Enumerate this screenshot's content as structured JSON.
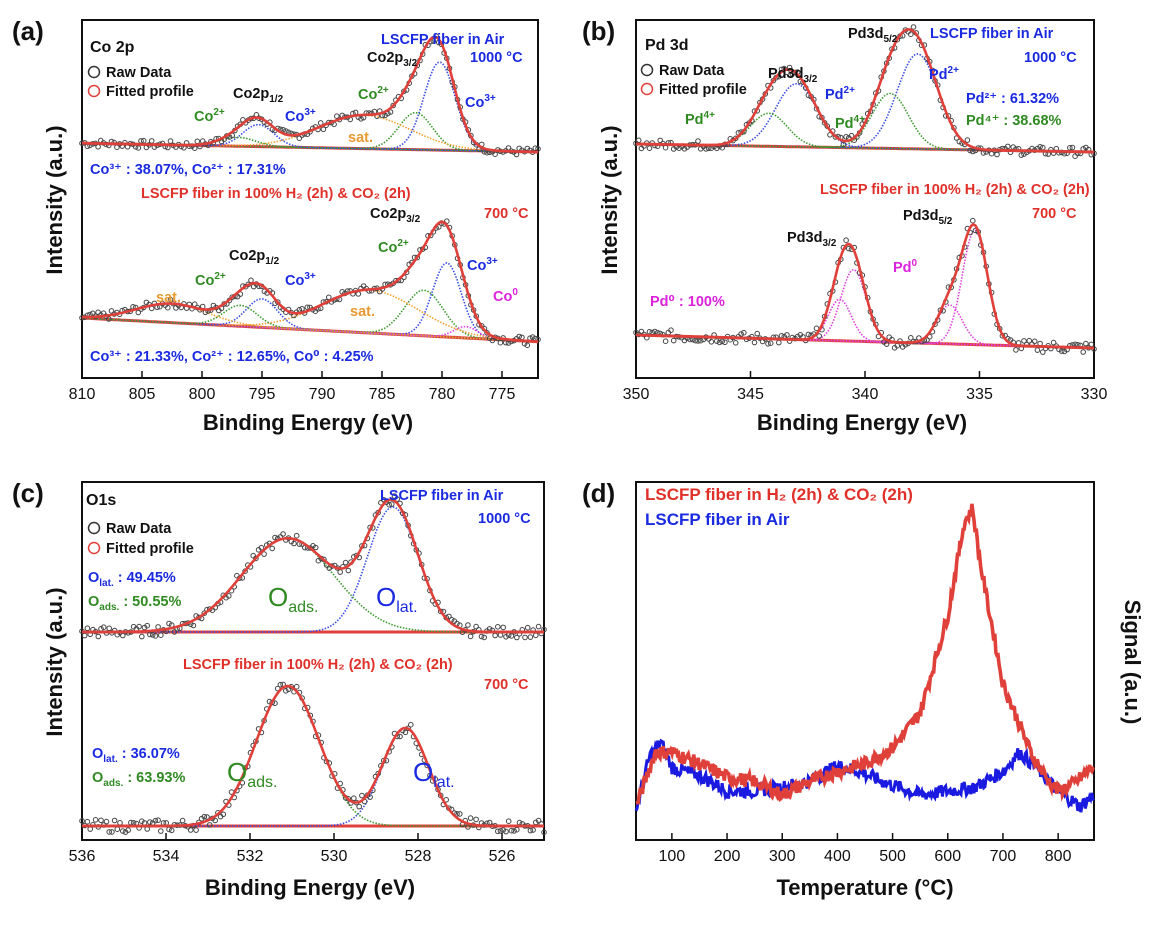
{
  "colors": {
    "raw": "#444444",
    "fit": "#e0403a",
    "co3": "#3a4ee6",
    "co2": "#3c9a2e",
    "sat": "#f0a030",
    "co0": "#e040e0",
    "lat": "#3a4ee6",
    "ads": "#3c9a2e",
    "background": "#e0403a",
    "air": "#1a1ae0",
    "red_text": "#e0302a",
    "blue_text": "#1a2ae0",
    "green_text": "#2f8a22",
    "magenta_text": "#dd22dd",
    "orange_text": "#e89a30"
  },
  "chart_data": [
    {
      "id": "a",
      "type": "line",
      "panel_label": "(a)",
      "element": "Co 2p",
      "xlabel": "Binding Energy (eV)",
      "ylabel": "Intensity (a.u.)",
      "xlim": [
        810,
        772
      ],
      "ticks": [
        810,
        805,
        800,
        795,
        790,
        785,
        780,
        775
      ],
      "legend": [
        "Raw Data",
        "Fitted profile"
      ],
      "legend_position": "top-left",
      "top": {
        "condition": "LSCFP fiber in Air",
        "temperature": "1000 °C",
        "peaks": [
          {
            "name": "Co3+",
            "center": 780.2,
            "height": 1.0,
            "width": 1.3
          },
          {
            "name": "Co2+",
            "center": 782.2,
            "height": 0.42,
            "width": 1.4
          },
          {
            "name": "sat.",
            "center": 786.5,
            "height": 0.38,
            "width": 3.8
          },
          {
            "name": "Co3+",
            "center": 795.3,
            "height": 0.25,
            "width": 1.3
          },
          {
            "name": "Co2+",
            "center": 797.0,
            "height": 0.1,
            "width": 1.5
          }
        ],
        "ratio_text": "Co³⁺ : 38.07%, Co²⁺ : 17.31%"
      },
      "bottom": {
        "condition": "LSCFP fiber in 100% H₂ (2h) & CO₂ (2h)",
        "temperature": "700 °C",
        "peaks": [
          {
            "name": "Co3+",
            "center": 779.6,
            "height": 0.78,
            "width": 1.2
          },
          {
            "name": "Co2+",
            "center": 781.5,
            "height": 0.48,
            "width": 1.6
          },
          {
            "name": "Co0",
            "center": 778.0,
            "height": 0.12,
            "width": 1.0
          },
          {
            "name": "sat.",
            "center": 786.0,
            "height": 0.45,
            "width": 4.0
          },
          {
            "name": "Co3+",
            "center": 795.0,
            "height": 0.3,
            "width": 1.3
          },
          {
            "name": "Co2+",
            "center": 796.8,
            "height": 0.22,
            "width": 1.4
          },
          {
            "name": "sat.",
            "center": 802.5,
            "height": 0.2,
            "width": 3.0
          }
        ],
        "ratio_text": "Co³⁺ : 21.33%, Co²⁺ : 12.65%, Co⁰ : 4.25%"
      }
    },
    {
      "id": "b",
      "type": "line",
      "panel_label": "(b)",
      "element": "Pd 3d",
      "xlabel": "Binding Energy (eV)",
      "ylabel": "Intensity (a.u.)",
      "xlim": [
        350,
        330
      ],
      "ticks": [
        350,
        345,
        340,
        335,
        330
      ],
      "legend": [
        "Raw Data",
        "Fitted profile"
      ],
      "legend_position": "top-left",
      "top": {
        "condition": "LSCFP fiber in Air",
        "temperature": "1000 °C",
        "peaks": [
          {
            "name": "Pd2+",
            "center": 337.7,
            "height": 0.95,
            "width": 0.9
          },
          {
            "name": "Pd4+",
            "center": 338.9,
            "height": 0.55,
            "width": 0.8
          },
          {
            "name": "Pd2+",
            "center": 343.0,
            "height": 0.63,
            "width": 0.9
          },
          {
            "name": "Pd4+",
            "center": 344.2,
            "height": 0.33,
            "width": 0.8
          }
        ],
        "ratio_text": [
          "Pd²⁺ : 61.32%",
          "Pd⁴⁺ : 38.68%"
        ]
      },
      "bottom": {
        "condition": "LSCFP fiber in 100% H₂ (2h) & CO₂ (2h)",
        "temperature": "700 °C",
        "peaks": [
          {
            "name": "Pd0",
            "center": 335.2,
            "height": 0.88,
            "width": 0.55
          },
          {
            "name": "Pd0",
            "center": 336.3,
            "height": 0.3,
            "width": 0.55
          },
          {
            "name": "Pd0",
            "center": 340.5,
            "height": 0.55,
            "width": 0.55
          },
          {
            "name": "Pd0",
            "center": 341.1,
            "height": 0.32,
            "width": 0.5
          }
        ],
        "ratio_text": [
          "Pd⁰ : 100%"
        ]
      }
    },
    {
      "id": "c",
      "type": "line",
      "panel_label": "(c)",
      "element": "O1s",
      "xlabel": "Binding Energy (eV)",
      "ylabel": "Intensity (a.u.)",
      "xlim": [
        536,
        525
      ],
      "ticks": [
        536,
        534,
        532,
        530,
        528,
        526
      ],
      "legend": [
        "Raw Data",
        "Fitted profile"
      ],
      "legend_position": "top-left",
      "top": {
        "condition": "LSCFP fiber in Air",
        "temperature": "1000 °C",
        "peaks": [
          {
            "name": "O lat.",
            "center": 528.6,
            "height": 1.0,
            "width": 0.6
          },
          {
            "name": "O ads.",
            "center": 531.1,
            "height": 0.75,
            "width": 1.1
          }
        ],
        "ratio_text": [
          "O_lat. : 49.45%",
          "O_ads. : 50.55%"
        ]
      },
      "bottom": {
        "condition": "LSCFP fiber in 100% H₂ (2h) & CO₂ (2h)",
        "temperature": "700 °C",
        "peaks": [
          {
            "name": "O lat.",
            "center": 528.3,
            "height": 0.7,
            "width": 0.55
          },
          {
            "name": "O ads.",
            "center": 531.1,
            "height": 1.0,
            "width": 0.75
          }
        ],
        "ratio_text": [
          "O_lat. : 36.07%",
          "O_ads. : 63.93%"
        ]
      }
    },
    {
      "id": "d",
      "type": "line",
      "panel_label": "(d)",
      "xlabel": "Temperature (°C)",
      "ylabel": "Signal (a.u.)",
      "xlim": [
        35,
        865
      ],
      "ticks": [
        100,
        200,
        300,
        400,
        500,
        600,
        700,
        800
      ],
      "legend_position": "top-left",
      "series": [
        {
          "name": "LSCFP fiber in H₂ (2h) & CO₂ (2h)",
          "points": [
            [
              35,
              0.12
            ],
            [
              70,
              0.4
            ],
            [
              100,
              0.4
            ],
            [
              150,
              0.34
            ],
            [
              200,
              0.27
            ],
            [
              250,
              0.25
            ],
            [
              300,
              0.18
            ],
            [
              350,
              0.25
            ],
            [
              400,
              0.3
            ],
            [
              450,
              0.34
            ],
            [
              500,
              0.42
            ],
            [
              550,
              0.6
            ],
            [
              600,
              1.1
            ],
            [
              630,
              1.58
            ],
            [
              645,
              1.65
            ],
            [
              660,
              1.35
            ],
            [
              700,
              0.75
            ],
            [
              750,
              0.4
            ],
            [
              780,
              0.26
            ],
            [
              800,
              0.2
            ],
            [
              830,
              0.24
            ],
            [
              865,
              0.33
            ]
          ]
        },
        {
          "name": "LSCFP fiber in Air",
          "points": [
            [
              35,
              0.1
            ],
            [
              60,
              0.38
            ],
            [
              80,
              0.45
            ],
            [
              100,
              0.32
            ],
            [
              150,
              0.28
            ],
            [
              200,
              0.2
            ],
            [
              250,
              0.2
            ],
            [
              300,
              0.22
            ],
            [
              350,
              0.25
            ],
            [
              400,
              0.33
            ],
            [
              440,
              0.3
            ],
            [
              480,
              0.25
            ],
            [
              550,
              0.18
            ],
            [
              600,
              0.2
            ],
            [
              650,
              0.22
            ],
            [
              700,
              0.3
            ],
            [
              730,
              0.4
            ],
            [
              760,
              0.32
            ],
            [
              800,
              0.2
            ],
            [
              840,
              0.12
            ],
            [
              865,
              0.18
            ]
          ]
        }
      ]
    }
  ]
}
